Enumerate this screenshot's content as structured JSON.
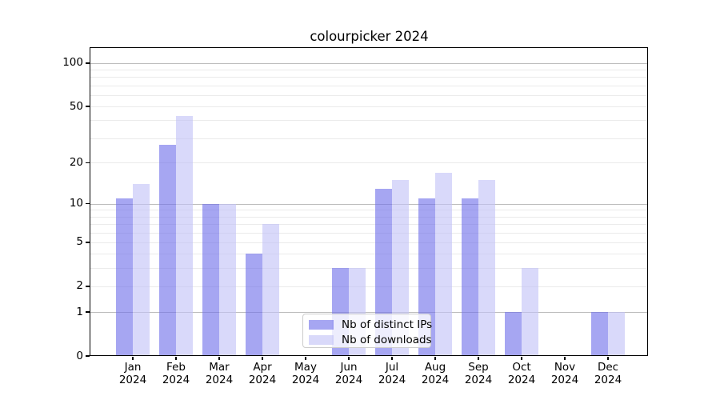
{
  "chart_data": {
    "type": "bar",
    "title": "colourpicker 2024",
    "x_tick_months": [
      "Jan",
      "Feb",
      "Mar",
      "Apr",
      "May",
      "Jun",
      "Jul",
      "Aug",
      "Sep",
      "Oct",
      "Nov",
      "Dec"
    ],
    "x_tick_year": "2024",
    "series": [
      {
        "name": "Nb of distinct IPs",
        "color": "rgba(112,112,234,0.62)",
        "values": [
          11,
          27,
          10,
          4,
          0,
          3,
          13,
          11,
          11,
          1,
          0,
          1
        ]
      },
      {
        "name": "Nb of downloads",
        "color": "rgba(193,193,247,0.62)",
        "values": [
          14,
          43,
          10,
          7,
          0,
          3,
          15,
          17,
          15,
          3,
          0,
          1
        ]
      }
    ],
    "y_ticks": [
      0,
      1,
      2,
      5,
      10,
      20,
      50,
      100
    ],
    "gridlines": {
      "major": [
        1,
        10,
        100
      ],
      "minor": [
        2,
        3,
        4,
        5,
        6,
        7,
        8,
        9,
        20,
        30,
        40,
        50,
        60,
        70,
        80,
        90
      ]
    },
    "yscale": "symlog",
    "ylim": [
      0,
      127
    ],
    "grid": true,
    "legend_position": "lower center"
  },
  "colors": {
    "minor_grid": "#ebebeb",
    "major_grid": "#bdbdbd",
    "axis": "#000000",
    "text": "#000000"
  }
}
